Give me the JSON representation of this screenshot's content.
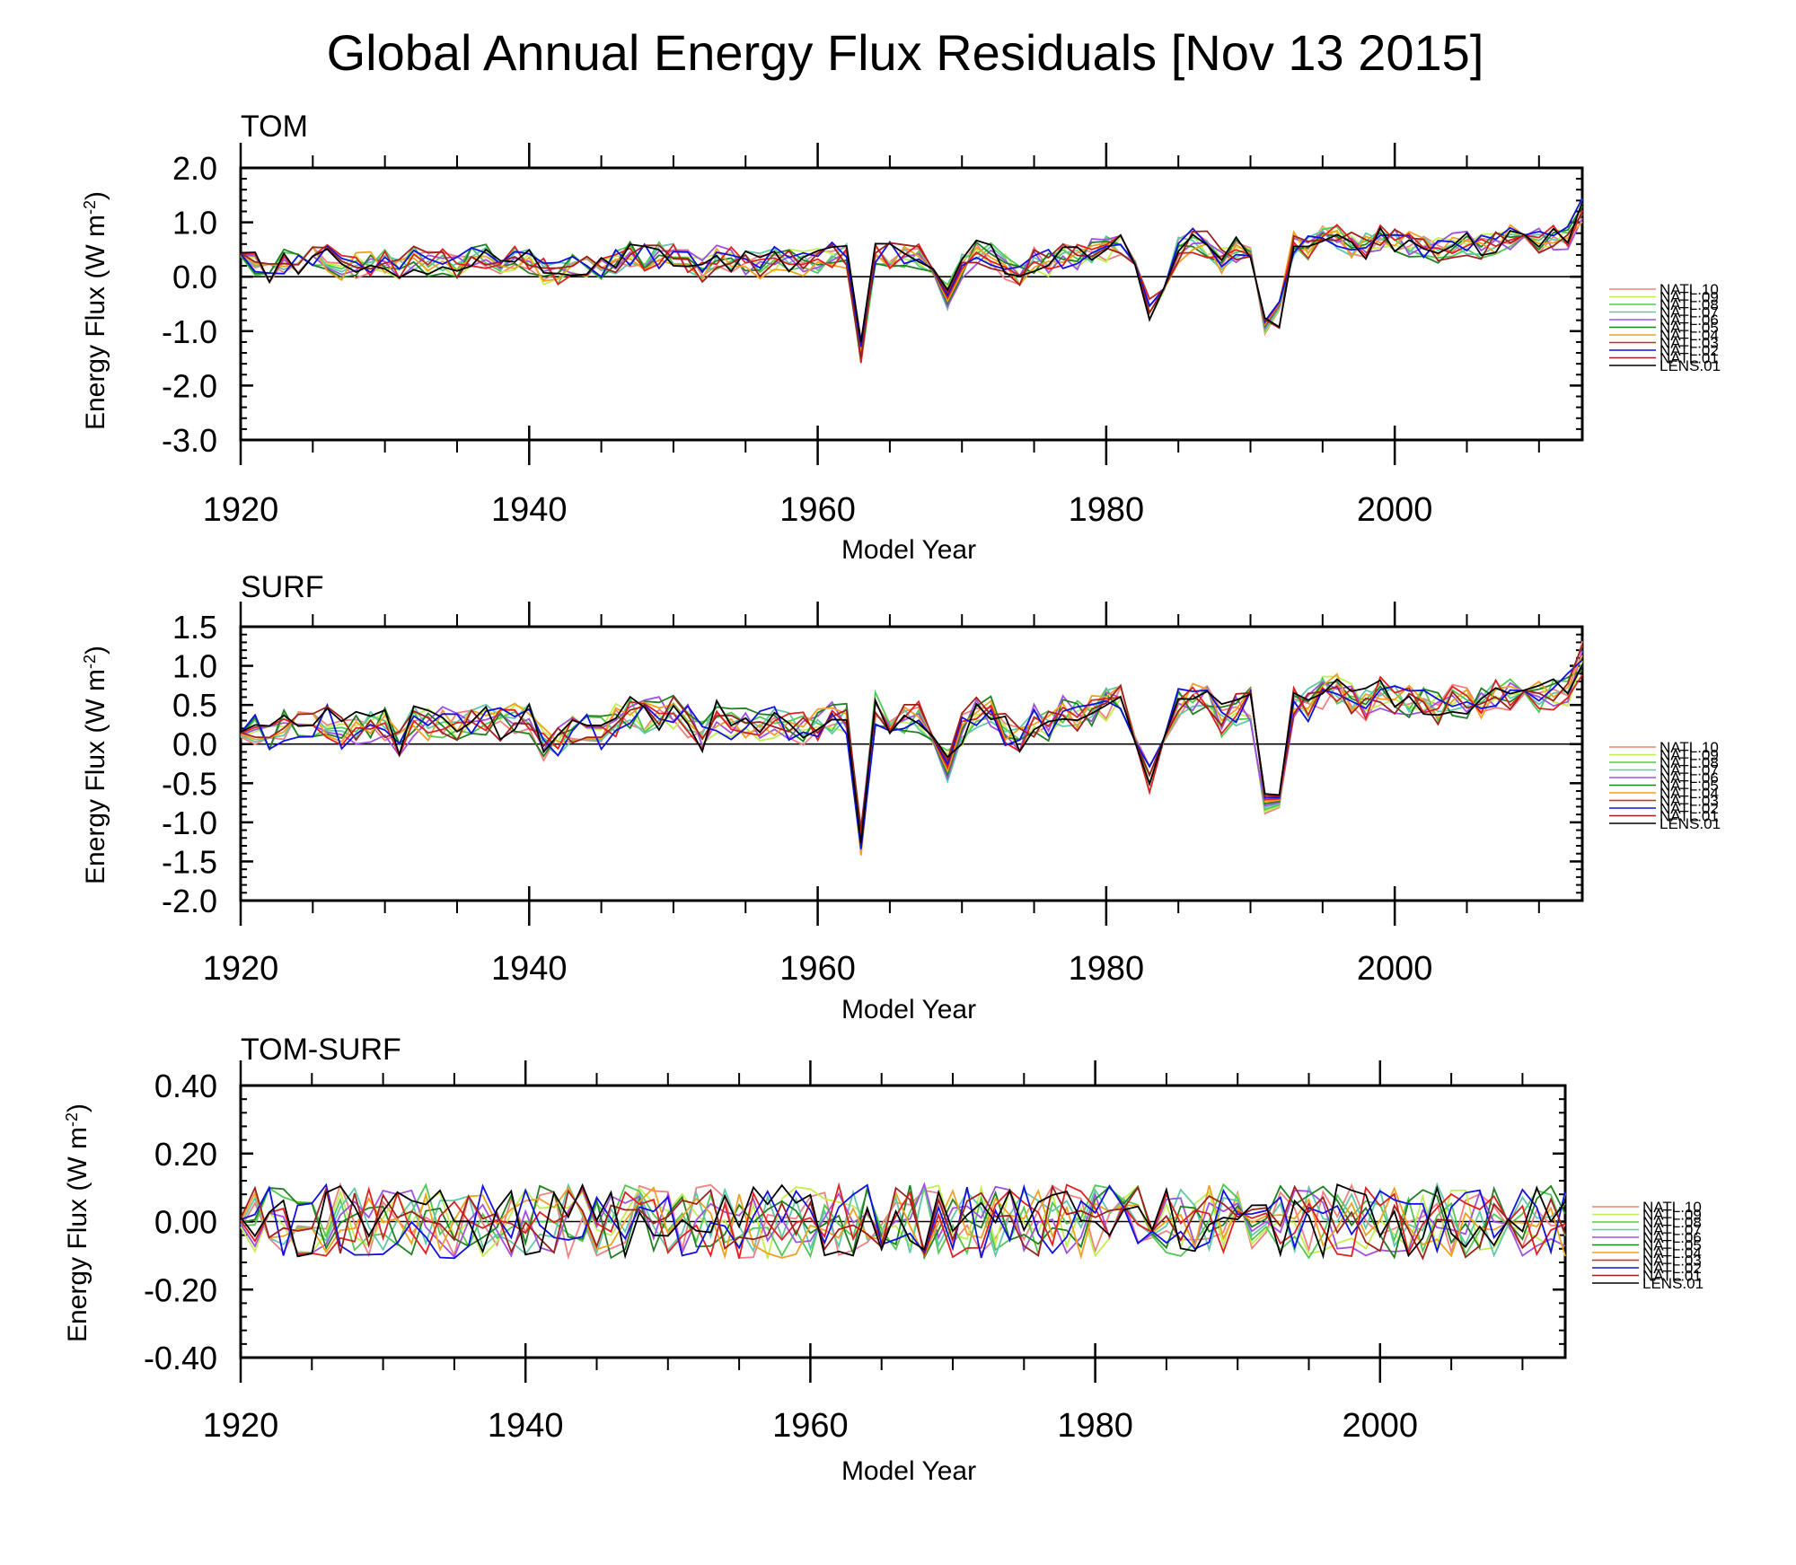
{
  "title": "Global Annual Energy Flux Residuals [Nov 13 2015]",
  "ylabel_prefix": "Energy Flux (W m",
  "ylabel_exp": "-2",
  "ylabel_suffix": ")",
  "legend_labels": [
    "NATL.10",
    "NATL.09",
    "NATL.08",
    "NATL.07",
    "NATL.06",
    "NATL.05",
    "NATL.04",
    "NATL.03",
    "NATL.02",
    "NATL.01",
    "LENS.01"
  ],
  "legend_colors": [
    "#F08080",
    "#C0F050",
    "#50C850",
    "#60C8A8",
    "#A050E0",
    "#208020",
    "#F0A020",
    "#E02020",
    "#1010E0",
    "#A02020",
    "#000000"
  ],
  "chart_data": [
    {
      "id": "tom",
      "type": "line",
      "panel_title": "TOM",
      "xlabel": "Model Year",
      "xlim": [
        1920,
        2013
      ],
      "ylim": [
        -3.0,
        2.0
      ],
      "x_ticks": [
        1920,
        1940,
        1960,
        1980,
        2000
      ],
      "y_ticks": [
        "2.0",
        "1.0",
        "0.0",
        "-1.0",
        "-2.0",
        "-3.0"
      ],
      "y_tick_values": [
        2.0,
        1.0,
        0.0,
        -1.0,
        -2.0,
        -3.0
      ],
      "reference_line": 0,
      "series_values": {
        "base": [
          0.3,
          0.25,
          0.05,
          0.3,
          0.25,
          0.3,
          0.35,
          0.15,
          0.2,
          0.25,
          0.3,
          0.1,
          0.35,
          0.25,
          0.3,
          0.2,
          0.35,
          0.4,
          0.3,
          0.35,
          0.3,
          0.1,
          0.1,
          0.2,
          0.2,
          0.15,
          0.3,
          0.4,
          0.35,
          0.4,
          0.4,
          0.3,
          0.1,
          0.35,
          0.3,
          0.25,
          0.2,
          0.35,
          0.3,
          0.25,
          0.3,
          0.4,
          0.35,
          -1.4,
          0.45,
          0.4,
          0.35,
          0.35,
          0.2,
          -0.35,
          0.2,
          0.45,
          0.4,
          0.2,
          0.05,
          0.3,
          0.25,
          0.4,
          0.35,
          0.45,
          0.5,
          0.55,
          0.2,
          -0.55,
          -0.05,
          0.5,
          0.65,
          0.6,
          0.3,
          0.5,
          0.55,
          -0.8,
          -0.7,
          0.6,
          0.55,
          0.7,
          0.75,
          0.6,
          0.55,
          0.7,
          0.65,
          0.6,
          0.55,
          0.5,
          0.6,
          0.6,
          0.55,
          0.65,
          0.7,
          0.7,
          0.65,
          0.7,
          0.75,
          1.2
        ],
        "amplitude": 0.25
      }
    },
    {
      "id": "surf",
      "type": "line",
      "panel_title": "SURF",
      "xlabel": "Model Year",
      "xlim": [
        1920,
        2013
      ],
      "ylim": [
        -2.0,
        1.5
      ],
      "x_ticks": [
        1920,
        1940,
        1960,
        1980,
        2000
      ],
      "y_ticks": [
        "1.5",
        "1.0",
        "0.5",
        "0.0",
        "-0.5",
        "-1.0",
        "-1.5",
        "-2.0"
      ],
      "y_tick_values": [
        1.5,
        1.0,
        0.5,
        0.0,
        -0.5,
        -1.0,
        -1.5,
        -2.0
      ],
      "reference_line": 0,
      "series_values": {
        "base": [
          0.3,
          0.2,
          0.05,
          0.25,
          0.2,
          0.3,
          0.3,
          0.15,
          0.2,
          0.2,
          0.25,
          0.05,
          0.3,
          0.25,
          0.3,
          0.2,
          0.35,
          0.3,
          0.25,
          0.35,
          0.3,
          0.0,
          0.05,
          0.15,
          0.2,
          0.15,
          0.3,
          0.4,
          0.35,
          0.4,
          0.4,
          0.3,
          0.1,
          0.35,
          0.25,
          0.25,
          0.2,
          0.3,
          0.25,
          0.2,
          0.25,
          0.35,
          0.3,
          -1.25,
          0.45,
          0.35,
          0.3,
          0.35,
          0.2,
          -0.3,
          0.2,
          0.4,
          0.4,
          0.2,
          0.05,
          0.3,
          0.25,
          0.4,
          0.35,
          0.45,
          0.5,
          0.55,
          0.2,
          -0.45,
          -0.05,
          0.5,
          0.6,
          0.55,
          0.3,
          0.45,
          0.5,
          -0.7,
          -0.6,
          0.55,
          0.5,
          0.65,
          0.7,
          0.55,
          0.5,
          0.65,
          0.6,
          0.55,
          0.5,
          0.45,
          0.55,
          0.55,
          0.5,
          0.6,
          0.65,
          0.65,
          0.6,
          0.65,
          0.7,
          1.1
        ],
        "amplitude": 0.22
      }
    },
    {
      "id": "tom-surf",
      "type": "line",
      "panel_title": "TOM-SURF",
      "xlabel": "Model Year",
      "xlim": [
        1920,
        2013
      ],
      "ylim": [
        -0.4,
        0.4
      ],
      "x_ticks": [
        1920,
        1940,
        1960,
        1980,
        2000
      ],
      "y_ticks": [
        "0.40",
        "0.20",
        "0.00",
        "-0.20",
        "-0.40"
      ],
      "y_tick_values": [
        0.4,
        0.2,
        0.0,
        -0.2,
        -0.4
      ],
      "reference_line": 0,
      "series_values": {
        "base": "zero",
        "amplitude": 0.11
      }
    }
  ]
}
